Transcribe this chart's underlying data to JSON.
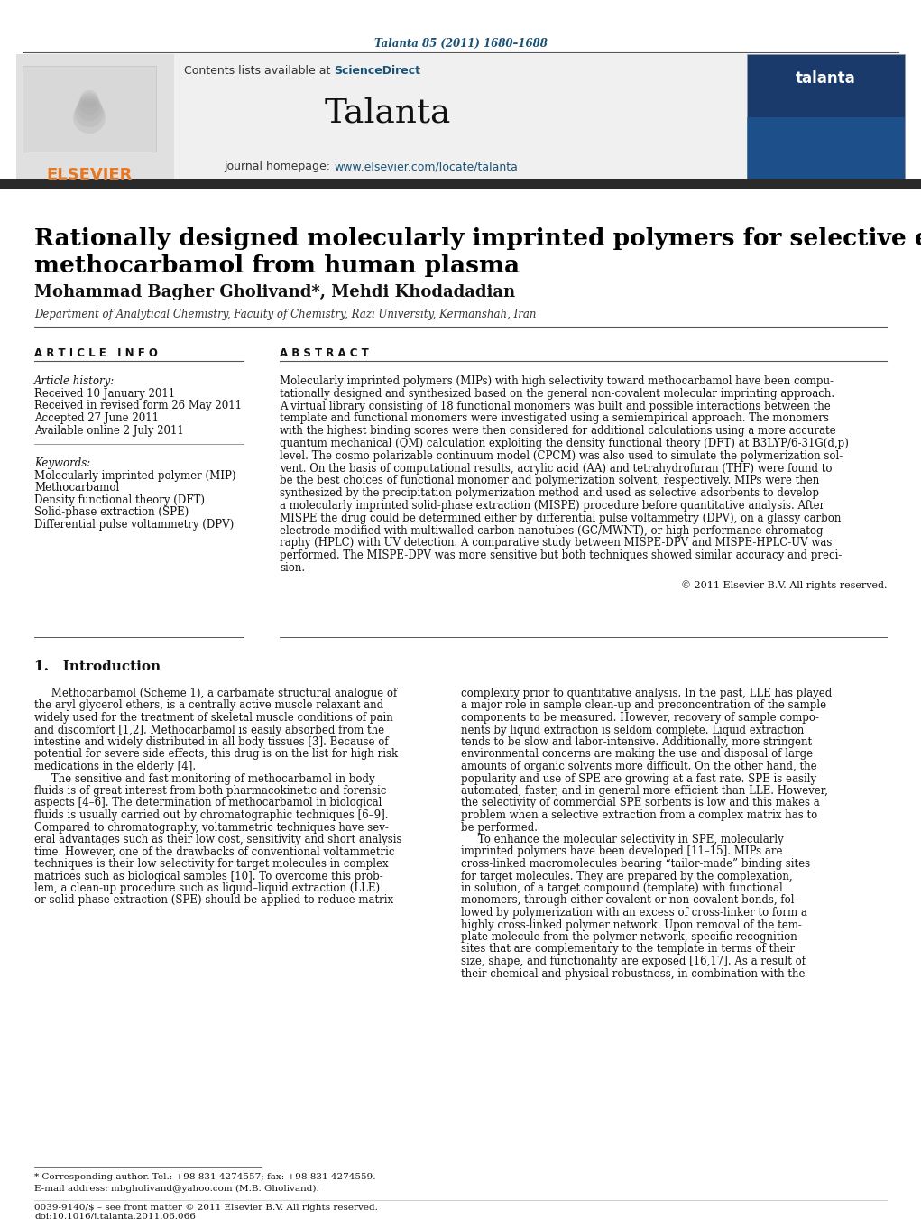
{
  "journal_ref": "Talanta 85 (2011) 1680–1688",
  "journal_name": "Talanta",
  "contents_text": "Contents lists available at ScienceDirect",
  "journal_homepage": "journal homepage: www.elsevier.com/locate/talanta",
  "title": "Rationally designed molecularly imprinted polymers for selective extraction of\nmethocarbamol from human plasma",
  "authors": "Mohammad Bagher Gholivand*, Mehdi Khodadadian",
  "affiliation": "Department of Analytical Chemistry, Faculty of Chemistry, Razi University, Kermanshah, Iran",
  "article_info_header": "A R T I C L E   I N F O",
  "abstract_header": "A B S T R A C T",
  "article_history_header": "Article history:",
  "article_history": [
    "Received 10 January 2011",
    "Received in revised form 26 May 2011",
    "Accepted 27 June 2011",
    "Available online 2 July 2011"
  ],
  "keywords_header": "Keywords:",
  "keywords": [
    "Molecularly imprinted polymer (MIP)",
    "Methocarbamol",
    "Density functional theory (DFT)",
    "Solid-phase extraction (SPE)",
    "Differential pulse voltammetry (DPV)"
  ],
  "copyright": "© 2011 Elsevier B.V. All rights reserved.",
  "section1_header": "1.   Introduction",
  "footnote1": "* Corresponding author. Tel.: +98 831 4274557; fax: +98 831 4274559.",
  "footnote2": "E-mail address: mbgholivand@yahoo.com (M.B. Gholivand).",
  "footnote3": "0039-9140/$ – see front matter © 2011 Elsevier B.V. All rights reserved.",
  "footnote4": "doi:10.1016/j.talanta.2011.06.066",
  "bg_header": "#f0f0f0",
  "bg_page": "#ffffff",
  "color_dark_bar": "#2a2a2a",
  "color_blue_link": "#1a5276",
  "color_elsevier_orange": "#e87722",
  "color_title": "#000000",
  "color_body": "#000000",
  "color_journal_ref": "#1a5276",
  "abstract_lines": [
    "Molecularly imprinted polymers (MIPs) with high selectivity toward methocarbamol have been compu-",
    "tationally designed and synthesized based on the general non-covalent molecular imprinting approach.",
    "A virtual library consisting of 18 functional monomers was built and possible interactions between the",
    "template and functional monomers were investigated using a semiempirical approach. The monomers",
    "with the highest binding scores were then considered for additional calculations using a more accurate",
    "quantum mechanical (QM) calculation exploiting the density functional theory (DFT) at B3LYP/6-31G(d,p)",
    "level. The cosmo polarizable continuum model (CPCM) was also used to simulate the polymerization sol-",
    "vent. On the basis of computational results, acrylic acid (AA) and tetrahydrofuran (THF) were found to",
    "be the best choices of functional monomer and polymerization solvent, respectively. MIPs were then",
    "synthesized by the precipitation polymerization method and used as selective adsorbents to develop",
    "a molecularly imprinted solid-phase extraction (MISPE) procedure before quantitative analysis. After",
    "MISPE the drug could be determined either by differential pulse voltammetry (DPV), on a glassy carbon",
    "electrode modified with multiwalled-carbon nanotubes (GC/MWNT), or high performance chromatog-",
    "raphy (HPLC) with UV detection. A comparative study between MISPE-DPV and MISPE-HPLC-UV was",
    "performed. The MISPE-DPV was more sensitive but both techniques showed similar accuracy and preci-",
    "sion."
  ],
  "col1_lines": [
    "     Methocarbamol (Scheme 1), a carbamate structural analogue of",
    "the aryl glycerol ethers, is a centrally active muscle relaxant and",
    "widely used for the treatment of skeletal muscle conditions of pain",
    "and discomfort [1,2]. Methocarbamol is easily absorbed from the",
    "intestine and widely distributed in all body tissues [3]. Because of",
    "potential for severe side effects, this drug is on the list for high risk",
    "medications in the elderly [4].",
    "     The sensitive and fast monitoring of methocarbamol in body",
    "fluids is of great interest from both pharmacokinetic and forensic",
    "aspects [4–6]. The determination of methocarbamol in biological",
    "fluids is usually carried out by chromatographic techniques [6–9].",
    "Compared to chromatography, voltammetric techniques have sev-",
    "eral advantages such as their low cost, sensitivity and short analysis",
    "time. However, one of the drawbacks of conventional voltammetric",
    "techniques is their low selectivity for target molecules in complex",
    "matrices such as biological samples [10]. To overcome this prob-",
    "lem, a clean-up procedure such as liquid–liquid extraction (LLE)",
    "or solid-phase extraction (SPE) should be applied to reduce matrix"
  ],
  "col2_lines": [
    "complexity prior to quantitative analysis. In the past, LLE has played",
    "a major role in sample clean-up and preconcentration of the sample",
    "components to be measured. However, recovery of sample compo-",
    "nents by liquid extraction is seldom complete. Liquid extraction",
    "tends to be slow and labor-intensive. Additionally, more stringent",
    "environmental concerns are making the use and disposal of large",
    "amounts of organic solvents more difficult. On the other hand, the",
    "popularity and use of SPE are growing at a fast rate. SPE is easily",
    "automated, faster, and in general more efficient than LLE. However,",
    "the selectivity of commercial SPE sorbents is low and this makes a",
    "problem when a selective extraction from a complex matrix has to",
    "be performed.",
    "     To enhance the molecular selectivity in SPE, molecularly",
    "imprinted polymers have been developed [11–15]. MIPs are",
    "cross-linked macromolecules bearing “tailor-made” binding sites",
    "for target molecules. They are prepared by the complexation,",
    "in solution, of a target compound (template) with functional",
    "monomers, through either covalent or non-covalent bonds, fol-",
    "lowed by polymerization with an excess of cross-linker to form a",
    "highly cross-linked polymer network. Upon removal of the tem-",
    "plate molecule from the polymer network, specific recognition",
    "sites that are complementary to the template in terms of their",
    "size, shape, and functionality are exposed [16,17]. As a result of",
    "their chemical and physical robustness, in combination with the"
  ]
}
